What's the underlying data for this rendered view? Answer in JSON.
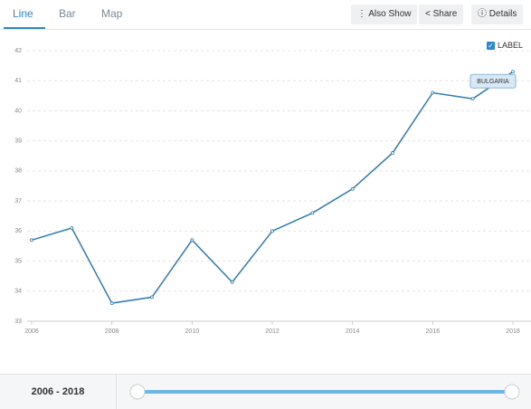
{
  "ui": {
    "tabs": [
      "Line",
      "Bar",
      "Map"
    ],
    "buttons": [
      "Also Show",
      "Share",
      "Details"
    ],
    "label_toggle": "LABEL",
    "range_label": "2006 - 2018"
  },
  "chart_data": {
    "type": "line",
    "x": [
      2006,
      2007,
      2008,
      2009,
      2010,
      2011,
      2012,
      2013,
      2014,
      2015,
      2016,
      2017,
      2018
    ],
    "series": [
      {
        "name": "BULGARIA",
        "color": "#2e7bb0",
        "values": [
          35.7,
          36.1,
          33.6,
          33.8,
          35.7,
          34.3,
          36.0,
          36.6,
          37.4,
          38.6,
          40.6,
          40.4,
          41.3
        ]
      }
    ],
    "xlim": [
      2006,
      2018
    ],
    "xticks": [
      2006,
      2008,
      2010,
      2012,
      2014,
      2016,
      2018
    ],
    "ylim": [
      33,
      42
    ],
    "yticks": [
      33,
      34,
      35,
      36,
      37,
      38,
      39,
      40,
      41,
      42
    ],
    "grid": true
  }
}
